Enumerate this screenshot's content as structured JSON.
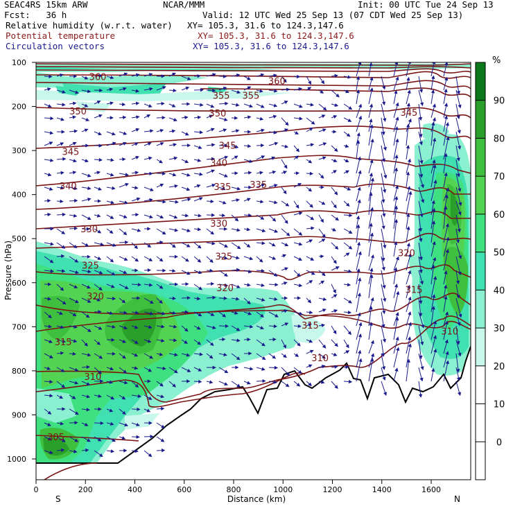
{
  "header": {
    "model": "SEAC4RS 15km ARW",
    "org": "NCAR/MMM",
    "init": "Init: 00 UTC Tue 24 Sep 13",
    "fcst": "Fcst:   36 h",
    "valid": "Valid: 12 UTC Wed 25 Sep 13 (07 CDT Wed 25 Sep 13)",
    "fields": [
      {
        "name": "Relative humidity (w.r.t. water)",
        "xy": "XY= 105.3, 31.6 to 124.3,147.6",
        "color": "#000000"
      },
      {
        "name": "Potential temperature",
        "xy": "XY= 105.3, 31.6 to 124.3,147.6",
        "color": "#8b1a1a"
      },
      {
        "name": "Circulation vectors",
        "xy": "XY= 105.3, 31.6 to 124.3,147.6",
        "color": "#1a1a8c"
      }
    ]
  },
  "chart_data": {
    "type": "heatmap",
    "xlabel": "Distance (km)",
    "ylabel": "Pressure (hPa)",
    "xlim": [
      0,
      1760
    ],
    "ylim": [
      1000,
      100
    ],
    "x_ticks": [
      0,
      200,
      400,
      600,
      800,
      1000,
      1200,
      1400,
      1600
    ],
    "y_ticks": [
      100,
      200,
      300,
      400,
      500,
      600,
      700,
      800,
      900,
      1000
    ],
    "x_end_labels": {
      "left": "S",
      "right": "N"
    },
    "colorbar": {
      "unit": "%",
      "levels": [
        90,
        80,
        70,
        60,
        50,
        40,
        30,
        20,
        10,
        0
      ],
      "colors": [
        "#0c7a1a",
        "#2aa02a",
        "#3ec03e",
        "#52d452",
        "#3fe07f",
        "#40e0b0",
        "#8af0d0",
        "#c8f8ec",
        "#ffffff",
        "#ffffff",
        "#ffffff"
      ]
    },
    "theta_labels": [
      {
        "value": "360",
        "x": 250,
        "p": 132
      },
      {
        "value": "360",
        "x": 975,
        "p": 142
      },
      {
        "value": "355",
        "x": 750,
        "p": 175
      },
      {
        "value": "355",
        "x": 870,
        "p": 175
      },
      {
        "value": "345",
        "x": 1510,
        "p": 213
      },
      {
        "value": "350",
        "x": 170,
        "p": 210
      },
      {
        "value": "350",
        "x": 735,
        "p": 215
      },
      {
        "value": "345",
        "x": 140,
        "p": 302
      },
      {
        "value": "345",
        "x": 775,
        "p": 288
      },
      {
        "value": "340",
        "x": 740,
        "p": 327
      },
      {
        "value": "340",
        "x": 130,
        "p": 380
      },
      {
        "value": "335",
        "x": 755,
        "p": 382
      },
      {
        "value": "335",
        "x": 900,
        "p": 377
      },
      {
        "value": "330",
        "x": 740,
        "p": 465
      },
      {
        "value": "330",
        "x": 215,
        "p": 478
      },
      {
        "value": "325",
        "x": 760,
        "p": 540
      },
      {
        "value": "325",
        "x": 220,
        "p": 560
      },
      {
        "value": "320",
        "x": 1500,
        "p": 532
      },
      {
        "value": "320",
        "x": 240,
        "p": 630
      },
      {
        "value": "320",
        "x": 765,
        "p": 611
      },
      {
        "value": "315",
        "x": 1530,
        "p": 615
      },
      {
        "value": "315",
        "x": 1110,
        "p": 696
      },
      {
        "value": "315",
        "x": 110,
        "p": 734
      },
      {
        "value": "310",
        "x": 1675,
        "p": 710
      },
      {
        "value": "310",
        "x": 1150,
        "p": 770
      },
      {
        "value": "310",
        "x": 230,
        "p": 813
      },
      {
        "value": "305",
        "x": 80,
        "p": 950
      }
    ]
  }
}
